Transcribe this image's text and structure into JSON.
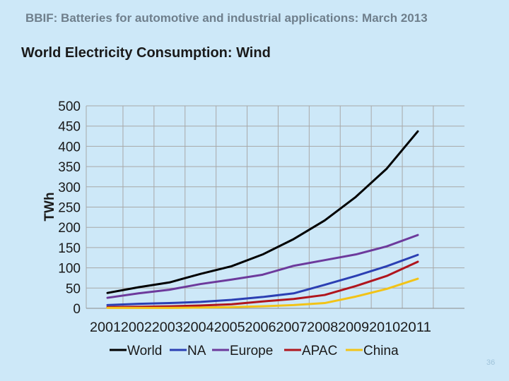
{
  "slide": {
    "header": "BBIF: Batteries for automotive and industrial applications: March 2013",
    "page_number": "36"
  },
  "chart_data": {
    "type": "line",
    "title": "World Electricity Consumption: Wind",
    "xlabel": "",
    "ylabel": "TWh",
    "ylim": [
      0,
      500
    ],
    "yticks": [
      0,
      50,
      100,
      150,
      200,
      250,
      300,
      350,
      400,
      450,
      500
    ],
    "x": [
      2001,
      2002,
      2003,
      2004,
      2005,
      2006,
      2007,
      2008,
      2009,
      2010,
      2011
    ],
    "categories": [
      "2001",
      "2002",
      "2003",
      "2004",
      "2005",
      "2006",
      "2007",
      "2008",
      "2009",
      "2010",
      "2011"
    ],
    "legend_position": "bottom",
    "grid": true,
    "series": [
      {
        "name": "World",
        "color": "#000000",
        "values": [
          38,
          52,
          64,
          85,
          104,
          133,
          171,
          217,
          275,
          345,
          437
        ]
      },
      {
        "name": "NA",
        "color": "#2b3fb3",
        "values": [
          8,
          11,
          13,
          16,
          21,
          28,
          37,
          58,
          80,
          104,
          132
        ]
      },
      {
        "name": "Europe",
        "color": "#6d3a9c",
        "values": [
          26,
          37,
          46,
          60,
          71,
          83,
          105,
          119,
          133,
          153,
          181
        ]
      },
      {
        "name": "APAC",
        "color": "#b0151d",
        "values": [
          3,
          4,
          5,
          7,
          10,
          17,
          23,
          33,
          55,
          80,
          115
        ]
      },
      {
        "name": "China",
        "color": "#f2c317",
        "values": [
          1,
          1,
          1,
          2,
          3,
          5,
          8,
          13,
          29,
          48,
          73
        ]
      }
    ]
  }
}
